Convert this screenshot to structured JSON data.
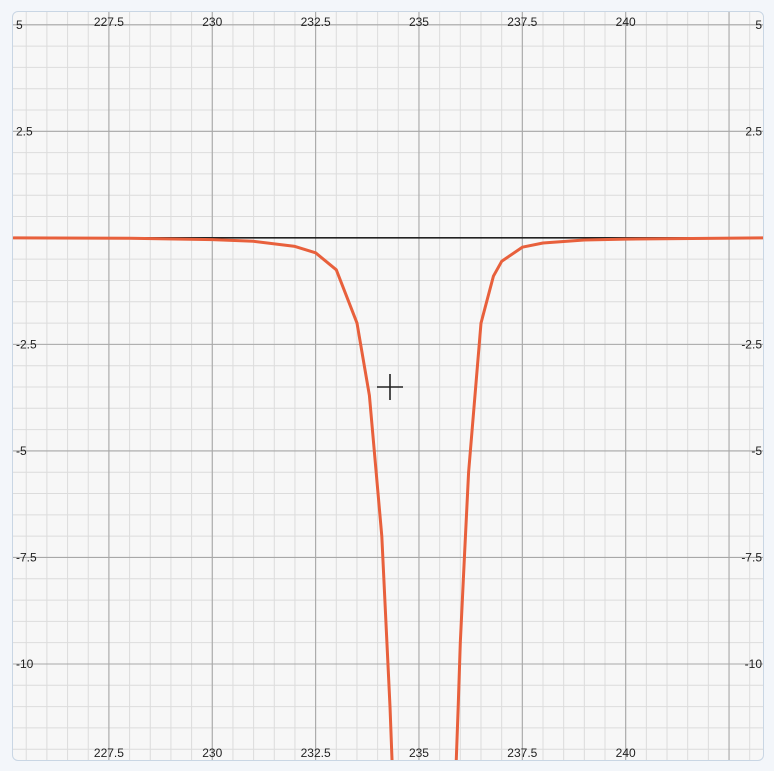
{
  "chart_data": {
    "type": "line",
    "title": "",
    "xlabel": "",
    "ylabel": "",
    "xlim": [
      225.18,
      243.37
    ],
    "ylim": [
      -12.3,
      5.3
    ],
    "x_ticks": [
      "227.5",
      "230",
      "232.5",
      "235",
      "237.5",
      "240"
    ],
    "y_ticks": [
      "5",
      "2.5",
      "-2.5",
      "-5",
      "-7.5",
      "-10"
    ],
    "x_tick_values": [
      227.5,
      230,
      232.5,
      235,
      237.5,
      240
    ],
    "y_tick_values": [
      5,
      2.5,
      -2.5,
      -5,
      -7.5,
      -10
    ],
    "grid": true,
    "series": [
      {
        "name": "",
        "color": "#e8603c",
        "x": [
          225.2,
          228.0,
          230.0,
          231.0,
          232.0,
          232.5,
          233.0,
          233.5,
          233.8,
          234.1,
          234.2,
          234.3,
          234.35,
          235.9,
          235.95,
          236.0,
          236.1,
          236.2,
          236.5,
          236.8,
          237.0,
          237.5,
          238.0,
          239.0,
          240.0,
          243.37
        ],
        "y": [
          0.0,
          -0.01,
          -0.04,
          -0.08,
          -0.2,
          -0.35,
          -0.75,
          -2.0,
          -3.7,
          -7.0,
          -9.0,
          -11.0,
          -12.3,
          -12.3,
          -11.0,
          -9.5,
          -7.5,
          -5.5,
          -2.0,
          -0.9,
          -0.55,
          -0.22,
          -0.12,
          -0.05,
          -0.03,
          0.0
        ]
      }
    ]
  },
  "colors": {
    "curve": "#e8603c",
    "axis": "#222222",
    "grid_major": "#a8a8a8",
    "grid_minor": "#dcdcdc",
    "background": "#f7f7f7"
  },
  "cursor_icon": "crosshair-icon"
}
